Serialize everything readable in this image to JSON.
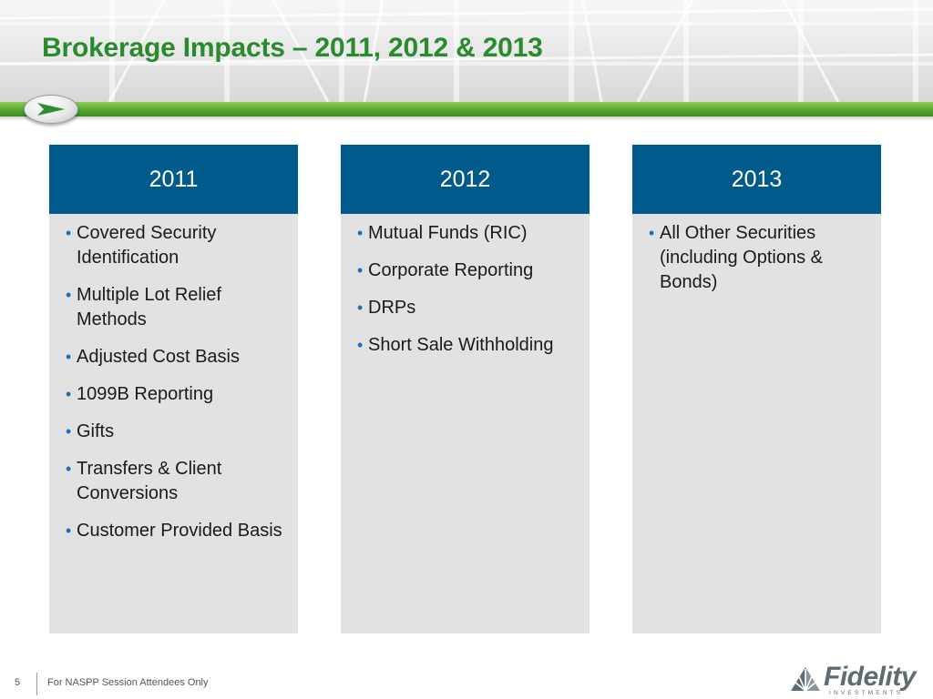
{
  "slide": {
    "title": "Brokerage Impacts – 2011, 2012 & 2013"
  },
  "columns": [
    {
      "heading": "2011",
      "items": [
        "Covered Security Identification",
        "Multiple Lot Relief Methods",
        "Adjusted Cost Basis",
        "1099B Reporting",
        "Gifts",
        "Transfers & Client Conversions",
        "Customer Provided Basis"
      ]
    },
    {
      "heading": "2012",
      "items": [
        "Mutual Funds (RIC)",
        "Corporate Reporting",
        "DRPs",
        "Short Sale Withholding"
      ]
    },
    {
      "heading": "2013",
      "items": [
        "All Other Securities (including Options & Bonds)"
      ]
    }
  ],
  "footer": {
    "page_number": "5",
    "note": "For NASPP Session Attendees Only",
    "logo_word": "Fidelity",
    "logo_sub": "INVESTMENTS"
  },
  "colors": {
    "title_green": "#2a8a2e",
    "header_blue": "#005a8c",
    "panel_gray": "#e2e2e2",
    "bar_green": "#5eaa35"
  },
  "icons": {
    "badge": "arrow-right-icon",
    "logo_mark": "pyramid-starburst-icon"
  }
}
